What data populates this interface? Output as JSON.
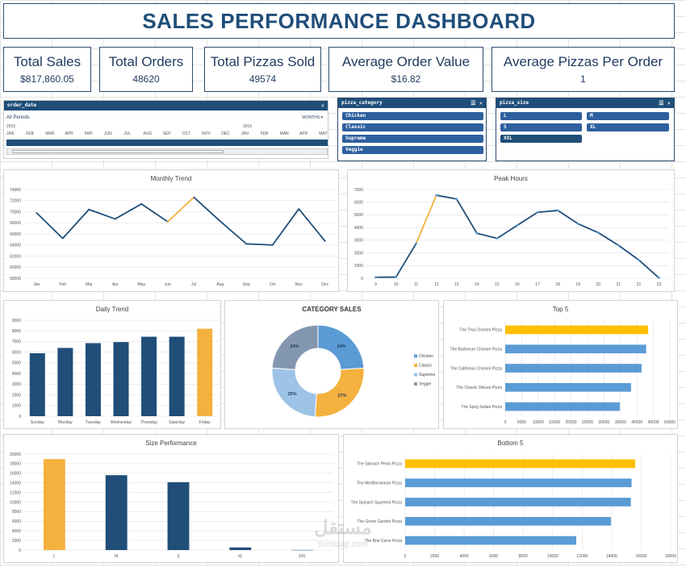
{
  "title": "SALES PERFORMANCE DASHBOARD",
  "kpis": [
    {
      "label": "Total Sales",
      "value": "$817,860.05"
    },
    {
      "label": "Total Orders",
      "value": "48620"
    },
    {
      "label": "Total Pizzas Sold",
      "value": "49574"
    },
    {
      "label": "Average Order Value",
      "value": "$16.82"
    },
    {
      "label": "Average Pizzas Per Order",
      "value": "1"
    }
  ],
  "timeline": {
    "header": "order_date",
    "all_periods": "All Periods",
    "level": "MONTHS",
    "year1": "2015",
    "year2": "2016",
    "months": [
      "JAN",
      "FEB",
      "MAR",
      "APR",
      "MAY",
      "JUN",
      "JUL",
      "AUG",
      "SEP",
      "OCT",
      "NOV",
      "DEC",
      "JAN",
      "FEB",
      "MAR",
      "APR",
      "MAY"
    ]
  },
  "slicer_category": {
    "header": "pizza_category",
    "items": [
      "Chicken",
      "Classic",
      "Supreme",
      "Veggie"
    ]
  },
  "slicer_size": {
    "header": "pizza_size",
    "items": [
      "L",
      "M",
      "S",
      "XL",
      "XXL"
    ]
  },
  "colors": {
    "navy": "#1f4e79",
    "highlight": "#f4b13e",
    "blue": "#5b9bd5",
    "light_blue": "#9dc3e6",
    "grey_blue": "#8497b0"
  },
  "watermark": {
    "line1": "مستقل",
    "line2": "mostaql.com"
  },
  "chart_data": [
    {
      "id": "monthly",
      "type": "line",
      "title": "Monthly Trend",
      "categories": [
        "Jan",
        "Feb",
        "Mar",
        "Apr",
        "May",
        "Jun",
        "Jul",
        "Aug",
        "Sep",
        "Oct",
        "Nov",
        "Dec"
      ],
      "values": [
        69800,
        65200,
        70400,
        68700,
        71400,
        68200,
        72600,
        68300,
        64200,
        64000,
        70500,
        64700
      ],
      "highlight_index": 6,
      "yticks": [
        "58000",
        "60000",
        "62000",
        "64000",
        "66000",
        "68000",
        "70000",
        "72000",
        "74000"
      ],
      "ylim": [
        58000,
        74000
      ]
    },
    {
      "id": "hours",
      "type": "line",
      "title": "Peak Hours",
      "categories": [
        "9",
        "10",
        "11",
        "12",
        "13",
        "14",
        "15",
        "16",
        "17",
        "18",
        "19",
        "20",
        "21",
        "22",
        "23"
      ],
      "values": [
        80,
        90,
        2750,
        6550,
        6250,
        3550,
        3150,
        4180,
        5200,
        5350,
        4300,
        3600,
        2600,
        1450,
        30
      ],
      "highlight_index": 3,
      "yticks": [
        "0",
        "1000",
        "2000",
        "3000",
        "4000",
        "5000",
        "6000",
        "7000"
      ],
      "ylim": [
        0,
        7000
      ]
    },
    {
      "id": "daily",
      "type": "bar",
      "title": "Daily Trend",
      "categories": [
        "Sunday",
        "Monday",
        "Tuesday",
        "Wednesday",
        "Thursday",
        "Saturday",
        "Friday"
      ],
      "values": [
        5900,
        6400,
        6850,
        6950,
        7450,
        7450,
        8200
      ],
      "highlight_index": 6,
      "yticks": [
        "0",
        "1000",
        "2000",
        "3000",
        "4000",
        "5000",
        "6000",
        "7000",
        "8000",
        "9000"
      ],
      "ylim": [
        0,
        9000
      ]
    },
    {
      "id": "category",
      "type": "pie",
      "title": "CATEGORY SALES",
      "labels": [
        "Chicken",
        "Classic",
        "Supreme",
        "Veggie"
      ],
      "values": [
        24,
        27,
        25,
        24
      ],
      "value_labels": [
        "24%",
        "27%",
        "25%",
        "24%"
      ]
    },
    {
      "id": "top5",
      "type": "bar",
      "orientation": "horizontal",
      "title": "Top 5",
      "categories": [
        "The Thai Chicken Pizza",
        "The Barbecue Chicken Pizza",
        "The California Chicken Pizza",
        "The Classic Deluxe Pizza",
        "The Spicy Italian Pizza"
      ],
      "values": [
        43400,
        42800,
        41400,
        38200,
        34800
      ],
      "highlight_index": 0,
      "xticks": [
        "0",
        "5000",
        "10000",
        "15000",
        "20000",
        "25000",
        "30000",
        "35000",
        "40000",
        "45000",
        "50000"
      ],
      "xlim": [
        0,
        50000
      ]
    },
    {
      "id": "size",
      "type": "bar",
      "title": "Size Performance",
      "categories": [
        "L",
        "M",
        "S",
        "XL",
        "XXL"
      ],
      "values": [
        18950,
        15600,
        14150,
        550,
        30
      ],
      "highlight_index": 0,
      "yticks": [
        "0",
        "2000",
        "4000",
        "6000",
        "8000",
        "10000",
        "12000",
        "14000",
        "16000",
        "18000",
        "20000"
      ],
      "ylim": [
        0,
        20000
      ]
    },
    {
      "id": "bottom5",
      "type": "bar",
      "orientation": "horizontal",
      "title": "Bottom 5",
      "categories": [
        "The Spinach Pesto Pizza",
        "The Mediterranean Pizza",
        "The Spinach Supreme Pizza",
        "The Green Garden Pizza",
        "The Brie Carre Pizza"
      ],
      "values": [
        15600,
        15350,
        15300,
        13950,
        11600
      ],
      "highlight_index": 0,
      "xticks": [
        "0",
        "2000",
        "4000",
        "6000",
        "8000",
        "10000",
        "12000",
        "14000",
        "16000",
        "18000"
      ],
      "xlim": [
        0,
        18000
      ]
    }
  ]
}
